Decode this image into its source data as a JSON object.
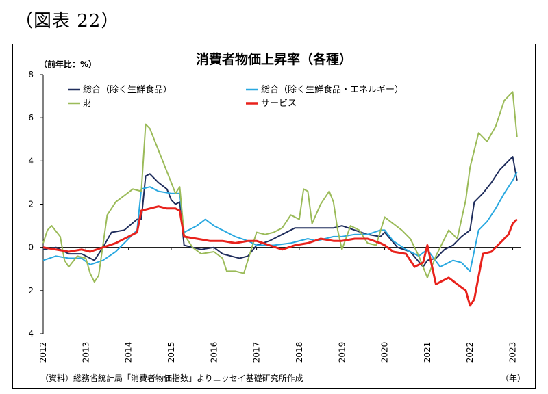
{
  "figure_label": "（図表 22）",
  "chart_data": {
    "type": "line",
    "title": "消費者物価上昇率（各種）",
    "ylabel": "（前年比：%）",
    "xunit": "（年）",
    "source": "（資料）総務省統計局「消費者物価指数」よりニッセイ基礎研究所作成",
    "ylim": [
      -4,
      8
    ],
    "yticks": [
      8,
      6,
      4,
      2,
      0,
      -2,
      -4
    ],
    "xlim": [
      2012,
      2023.2
    ],
    "xticks": [
      "2012",
      "2013",
      "2014",
      "2015",
      "2016",
      "2017",
      "2018",
      "2019",
      "2020",
      "2021",
      "2022",
      "2023"
    ],
    "legend": "top-inside, two columns",
    "series": [
      {
        "name": "総合（除く生鮮食品）",
        "color": "#1f2d5c",
        "width": 2,
        "x": [
          2012.0,
          2012.3,
          2012.6,
          2012.9,
          2013.2,
          2013.4,
          2013.6,
          2013.9,
          2014.2,
          2014.3,
          2014.4,
          2014.5,
          2014.7,
          2014.9,
          2015.0,
          2015.1,
          2015.2,
          2015.3,
          2015.5,
          2015.7,
          2016.0,
          2016.2,
          2016.4,
          2016.6,
          2016.8,
          2017.0,
          2017.3,
          2017.6,
          2017.9,
          2018.2,
          2018.5,
          2018.8,
          2019.0,
          2019.3,
          2019.6,
          2019.9,
          2020.0,
          2020.3,
          2020.6,
          2020.9,
          2021.0,
          2021.2,
          2021.4,
          2021.6,
          2021.8,
          2022.0,
          2022.1,
          2022.3,
          2022.5,
          2022.7,
          2022.9,
          2023.0,
          2023.1
        ],
        "y": [
          -0.1,
          0.0,
          -0.3,
          -0.3,
          -0.6,
          0.0,
          0.7,
          0.8,
          1.3,
          1.3,
          3.3,
          3.4,
          3.0,
          2.7,
          2.2,
          2.0,
          2.1,
          0.1,
          0.0,
          -0.1,
          0.0,
          -0.3,
          -0.4,
          -0.5,
          -0.4,
          0.1,
          0.3,
          0.6,
          0.9,
          0.9,
          0.9,
          0.9,
          1.0,
          0.8,
          0.6,
          0.5,
          0.7,
          0.0,
          -0.2,
          -0.9,
          -0.6,
          -0.5,
          -0.1,
          0.1,
          0.5,
          0.8,
          2.1,
          2.5,
          3.0,
          3.6,
          4.0,
          4.2,
          3.1
        ]
      },
      {
        "name": "総合（除く生鮮食品・エネルギー）",
        "color": "#29a8e0",
        "width": 2,
        "x": [
          2012.0,
          2012.3,
          2012.6,
          2012.9,
          2013.1,
          2013.4,
          2013.7,
          2014.0,
          2014.2,
          2014.3,
          2014.5,
          2014.7,
          2015.0,
          2015.2,
          2015.3,
          2015.6,
          2015.8,
          2016.0,
          2016.2,
          2016.5,
          2016.8,
          2017.0,
          2017.4,
          2017.8,
          2018.2,
          2018.4,
          2018.6,
          2018.8,
          2019.0,
          2019.3,
          2019.6,
          2019.9,
          2020.0,
          2020.2,
          2020.5,
          2020.8,
          2021.0,
          2021.3,
          2021.6,
          2021.8,
          2022.0,
          2022.2,
          2022.4,
          2022.6,
          2022.8,
          2023.0,
          2023.1
        ],
        "y": [
          -0.6,
          -0.4,
          -0.5,
          -0.5,
          -0.8,
          -0.6,
          -0.2,
          0.4,
          0.8,
          2.7,
          2.8,
          2.6,
          2.5,
          2.5,
          0.7,
          1.0,
          1.3,
          1.0,
          0.8,
          0.5,
          0.3,
          0.1,
          0.1,
          0.2,
          0.4,
          0.3,
          0.4,
          0.5,
          0.5,
          0.6,
          0.6,
          0.8,
          0.8,
          0.3,
          -0.1,
          -0.4,
          -0.1,
          -0.9,
          -0.6,
          -0.7,
          -1.1,
          0.8,
          1.2,
          1.8,
          2.5,
          3.1,
          3.5
        ]
      },
      {
        "name": "財",
        "color": "#9bbb59",
        "width": 2,
        "x": [
          2012.0,
          2012.1,
          2012.2,
          2012.4,
          2012.5,
          2012.6,
          2012.8,
          2013.0,
          2013.1,
          2013.2,
          2013.3,
          2013.5,
          2013.7,
          2013.9,
          2014.1,
          2014.3,
          2014.4,
          2014.5,
          2014.6,
          2014.8,
          2015.0,
          2015.1,
          2015.2,
          2015.3,
          2015.5,
          2015.7,
          2016.0,
          2016.2,
          2016.3,
          2016.5,
          2016.7,
          2017.0,
          2017.2,
          2017.4,
          2017.6,
          2017.8,
          2018.0,
          2018.1,
          2018.2,
          2018.3,
          2018.5,
          2018.7,
          2018.8,
          2018.9,
          2019.0,
          2019.2,
          2019.4,
          2019.6,
          2019.8,
          2020.0,
          2020.2,
          2020.4,
          2020.6,
          2020.8,
          2021.0,
          2021.2,
          2021.5,
          2021.7,
          2021.9,
          2022.0,
          2022.2,
          2022.4,
          2022.6,
          2022.8,
          2023.0,
          2023.1
        ],
        "y": [
          0.2,
          0.8,
          1.0,
          0.5,
          -0.6,
          -0.9,
          -0.4,
          -0.5,
          -1.2,
          -1.6,
          -1.3,
          1.5,
          2.1,
          2.4,
          2.7,
          2.6,
          5.7,
          5.5,
          5.0,
          4.0,
          3.0,
          2.5,
          2.8,
          0.6,
          0.0,
          -0.3,
          -0.2,
          -0.5,
          -1.1,
          -1.1,
          -1.2,
          0.7,
          0.6,
          0.7,
          0.9,
          1.5,
          1.3,
          2.7,
          2.6,
          1.1,
          2.0,
          2.6,
          2.1,
          0.8,
          -0.1,
          1.0,
          0.8,
          0.2,
          0.1,
          1.4,
          1.1,
          0.8,
          0.4,
          -0.4,
          -1.4,
          -0.4,
          0.8,
          0.4,
          2.2,
          3.7,
          5.3,
          4.9,
          5.6,
          6.8,
          7.2,
          5.1
        ]
      },
      {
        "name": "サービス",
        "color": "#e8221c",
        "width": 3,
        "x": [
          2012.0,
          2012.3,
          2012.6,
          2012.9,
          2013.1,
          2013.4,
          2013.7,
          2014.0,
          2014.2,
          2014.3,
          2014.5,
          2014.7,
          2014.9,
          2015.1,
          2015.2,
          2015.3,
          2015.6,
          2015.9,
          2016.2,
          2016.5,
          2016.8,
          2017.0,
          2017.3,
          2017.6,
          2017.9,
          2018.2,
          2018.5,
          2018.8,
          2019.0,
          2019.3,
          2019.6,
          2019.9,
          2020.0,
          2020.2,
          2020.5,
          2020.7,
          2020.9,
          2021.0,
          2021.2,
          2021.3,
          2021.5,
          2021.7,
          2021.9,
          2022.0,
          2022.1,
          2022.3,
          2022.5,
          2022.7,
          2022.9,
          2023.0,
          2023.1
        ],
        "y": [
          0.0,
          -0.1,
          -0.2,
          -0.1,
          -0.2,
          0.0,
          0.2,
          0.5,
          0.7,
          1.7,
          1.8,
          1.9,
          1.8,
          1.8,
          1.7,
          0.5,
          0.4,
          0.3,
          0.3,
          0.2,
          0.3,
          0.3,
          0.1,
          -0.1,
          0.1,
          0.2,
          0.4,
          0.3,
          0.3,
          0.4,
          0.4,
          0.2,
          0.1,
          -0.2,
          -0.3,
          -0.9,
          -0.7,
          0.1,
          -1.7,
          -1.6,
          -1.4,
          -1.7,
          -2.0,
          -2.7,
          -2.4,
          -0.3,
          -0.2,
          0.2,
          0.6,
          1.1,
          1.3
        ]
      }
    ]
  }
}
